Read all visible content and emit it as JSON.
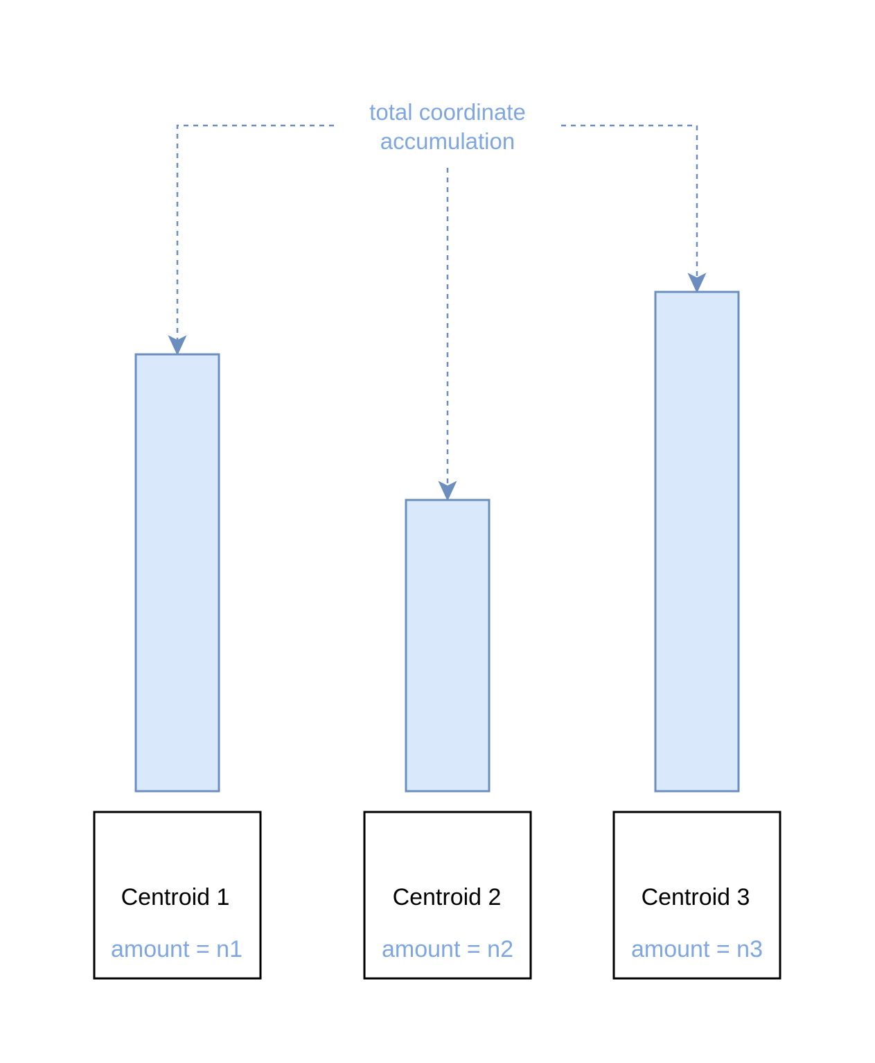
{
  "annotation": {
    "line1": "total coordinate",
    "line2": "accumulation"
  },
  "centroids": [
    {
      "label": "Centroid 1",
      "amount": "amount = n1"
    },
    {
      "label": "Centroid 2",
      "amount": "amount = n2"
    },
    {
      "label": "Centroid 3",
      "amount": "amount = n3"
    }
  ],
  "colors": {
    "bar_fill": "#dae8fc",
    "bar_stroke": "#6c8ebf",
    "annotation_text": "#7ea6e0",
    "box_stroke": "#000000"
  }
}
